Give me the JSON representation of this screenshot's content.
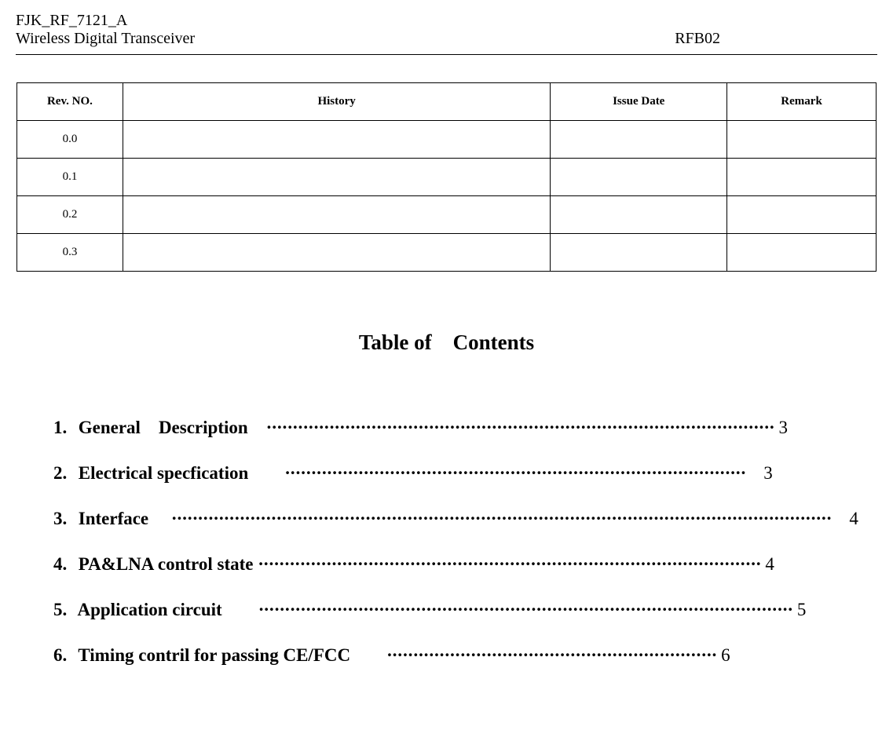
{
  "header": {
    "doc_id": "FJK_RF_7121_A",
    "doc_title": "Wireless Digital Transceiver",
    "doc_code": "RFB02"
  },
  "rev_table": {
    "columns": [
      "Rev. NO.",
      "History",
      "Issue Date",
      "Remark"
    ],
    "rows": [
      {
        "rev": "0.0",
        "history": "",
        "date": "",
        "remark": ""
      },
      {
        "rev": "0.1",
        "history": "",
        "date": "",
        "remark": ""
      },
      {
        "rev": "0.2",
        "history": "",
        "date": "",
        "remark": ""
      },
      {
        "rev": "0.3",
        "history": "",
        "date": "",
        "remark": ""
      }
    ]
  },
  "toc": {
    "title": "Table of Contents",
    "items": [
      {
        "num": "1.",
        "label": "General Description",
        "dots": "·································································································",
        "gap_before_dots": " ",
        "gap_before_page": " ",
        "page": "3"
      },
      {
        "num": "2.",
        "label": "Electrical specfication",
        "dots": "························································································",
        "gap_before_dots": "  ",
        "gap_before_page": " ",
        "page": "3"
      },
      {
        "num": "3.",
        "label": "Interface",
        "dots": "······························································································································",
        "gap_before_dots": "  ",
        "gap_before_page": " ",
        "page": "4"
      },
      {
        "num": "4.",
        "label": "PA&LNA control state",
        "dots": " ································································································",
        "gap_before_dots": " ",
        "gap_before_page": " ",
        "page": "4"
      },
      {
        "num": "5.",
        "label": "Application circuit",
        "dots": "······································································································",
        "gap_before_dots": "  ",
        "gap_before_page": " ",
        "page": "5"
      },
      {
        "num": "6.",
        "label": "Timing contril for passing CE/FCC",
        "dots": "·······························································",
        "gap_before_dots": "  ",
        "gap_before_page": " ",
        "page": "6"
      }
    ]
  }
}
